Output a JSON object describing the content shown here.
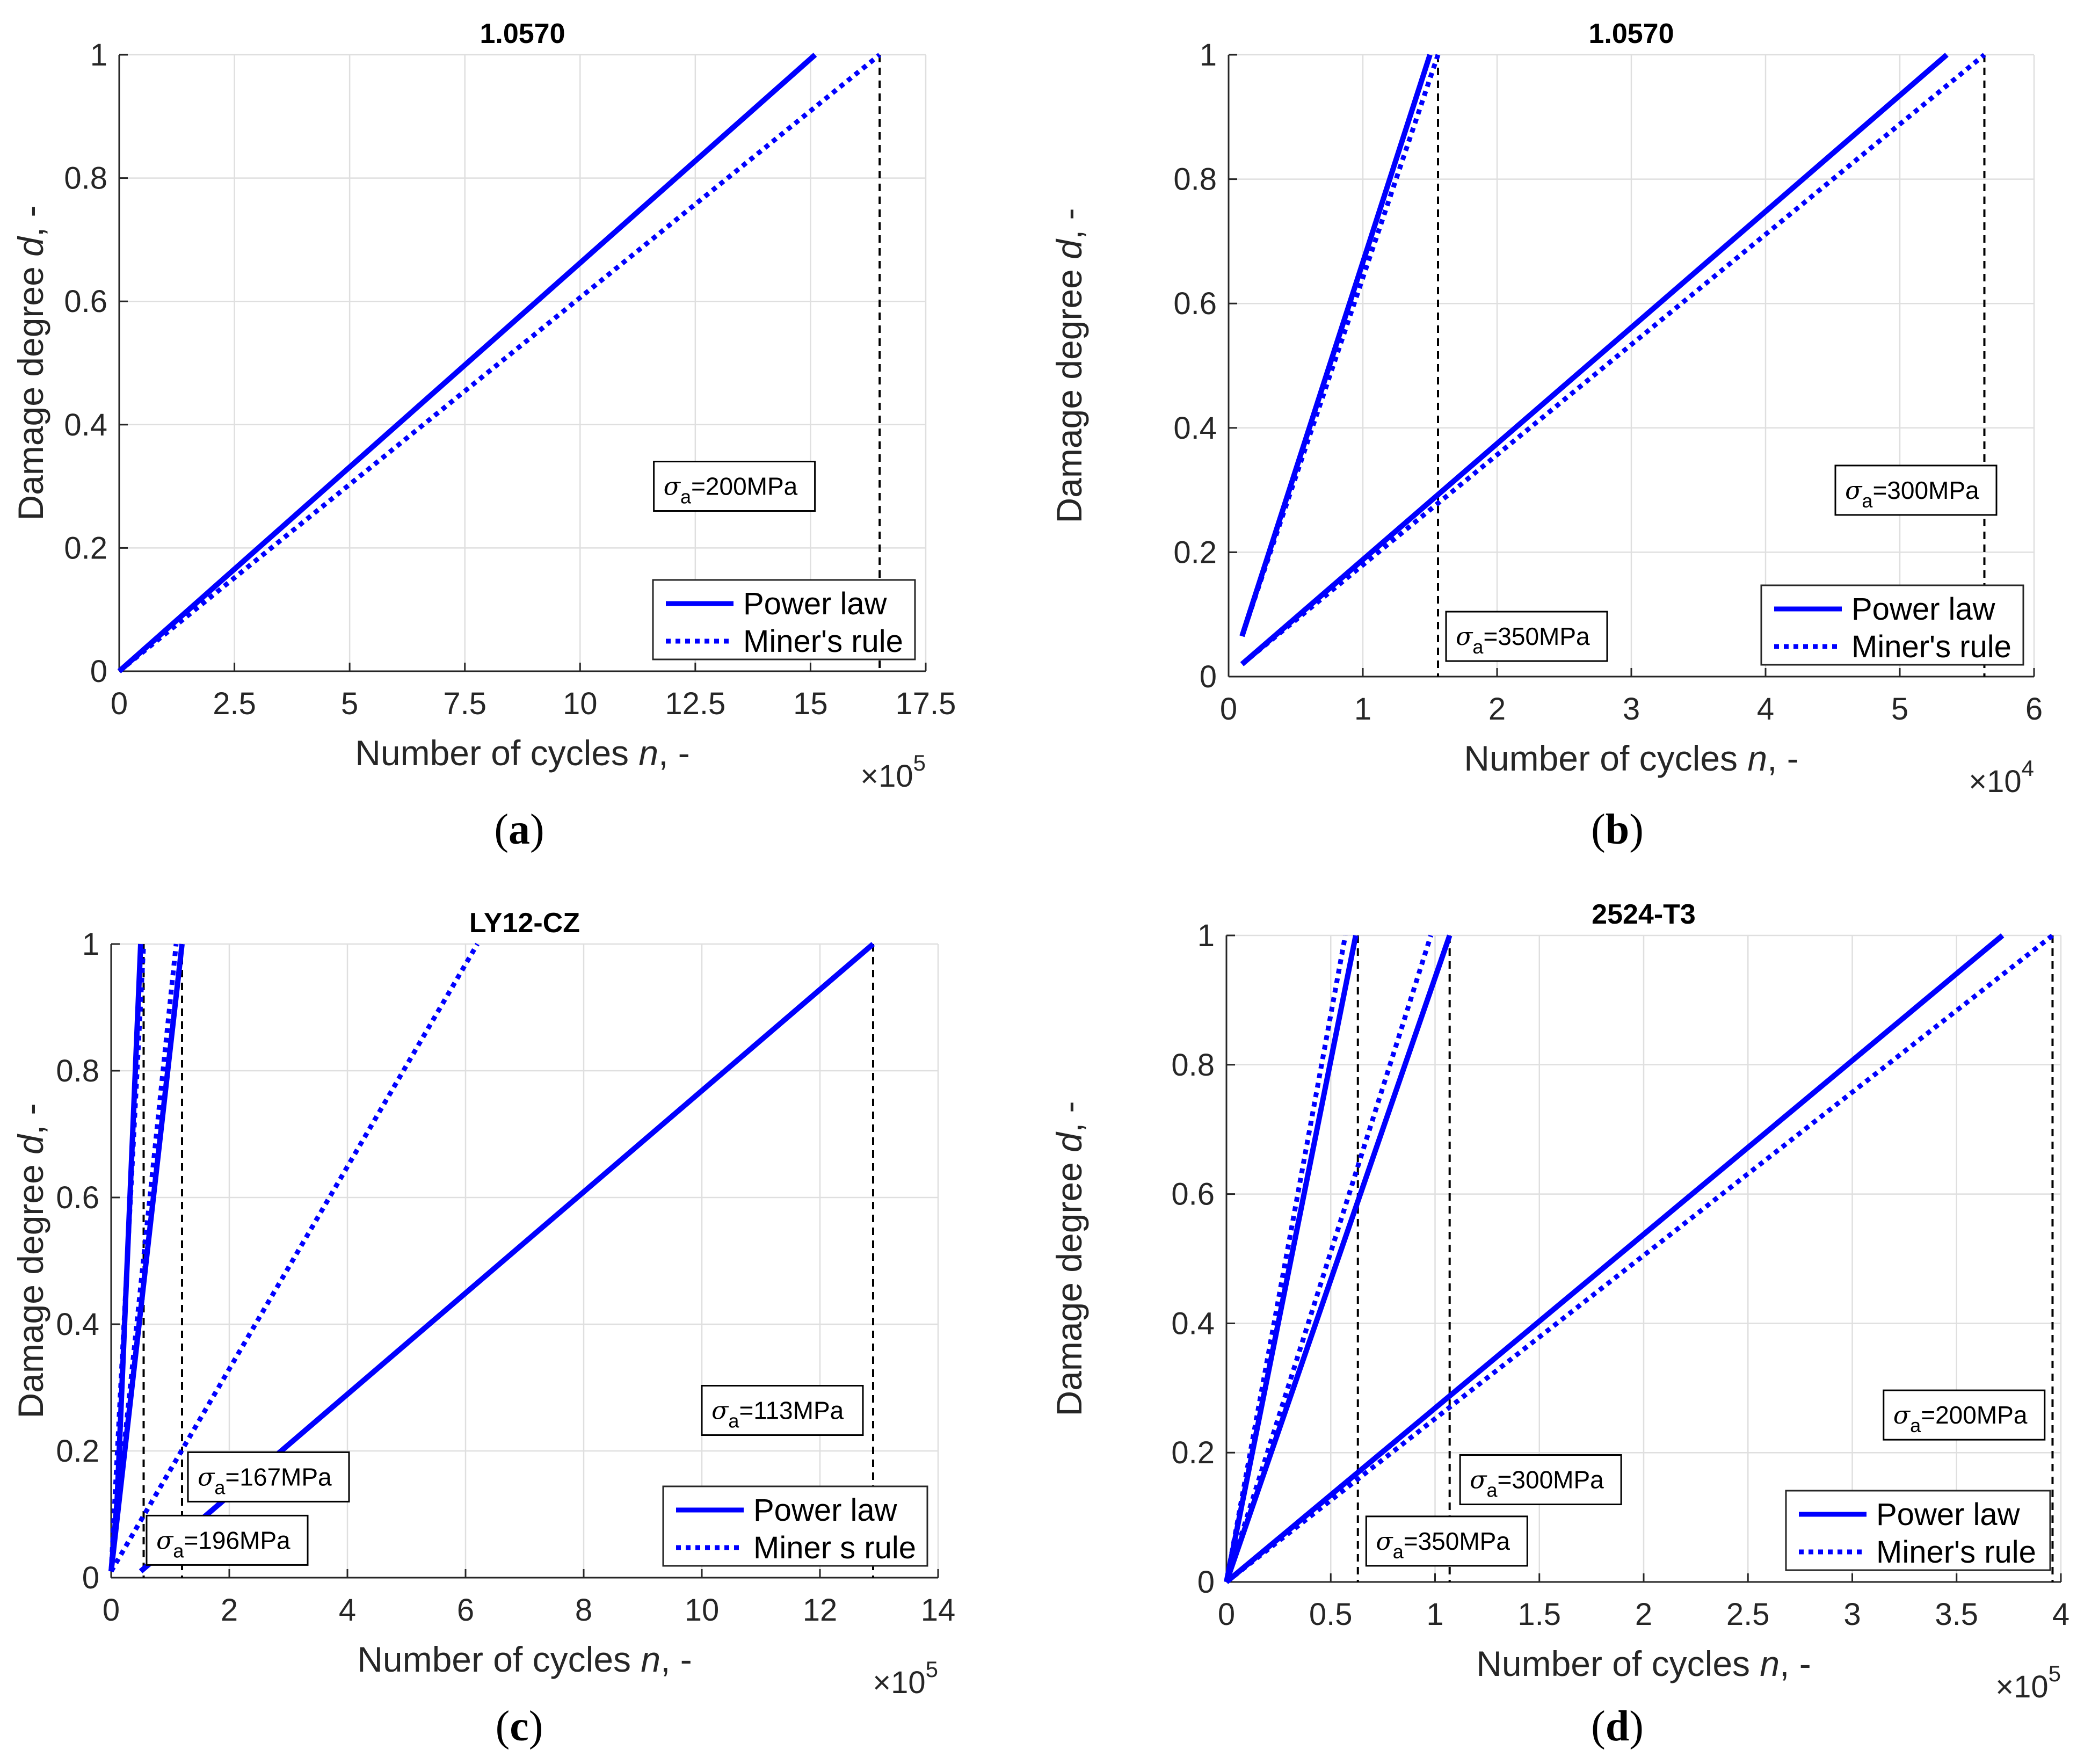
{
  "figure": {
    "axis_label_x_prefix": "Number of cycles ",
    "axis_label_x_var": "n",
    "axis_label_x_suffix": ", -",
    "axis_label_y_prefix": "Damage degree ",
    "axis_label_y_var": "d",
    "axis_label_y_suffix": ", -",
    "colors": {
      "series": "#0000ff",
      "axes": "#262626",
      "grid": "#dfdfdf",
      "vline": "#000000"
    }
  },
  "chart_data": [
    {
      "id": "a",
      "type": "line",
      "caption_letter": "a",
      "title": "1.0570",
      "xlim": [
        0,
        17.5
      ],
      "ylim": [
        0,
        1
      ],
      "xticks": [
        0,
        2.5,
        5,
        7.5,
        10,
        12.5,
        15,
        17.5
      ],
      "xtick_labels": [
        "0",
        "2.5",
        "5",
        "7.5",
        "10",
        "12.5",
        "15",
        "17.5"
      ],
      "yticks": [
        0,
        0.2,
        0.4,
        0.6,
        0.8,
        1
      ],
      "ytick_labels": [
        "0",
        "0.2",
        "0.4",
        "0.6",
        "0.8",
        "1"
      ],
      "x_multiplier": "×10",
      "x_exponent": "5",
      "legend": [
        "Power law",
        "Miner's rule"
      ],
      "legend_position": "bottom-right",
      "series": [
        {
          "name": "Power law",
          "style": "solid",
          "x": [
            0,
            15.1
          ],
          "y": [
            0,
            1
          ]
        },
        {
          "name": "Miner's rule",
          "style": "dotted",
          "x": [
            0,
            16.5
          ],
          "y": [
            0,
            1
          ]
        }
      ],
      "vlines": [
        16.5
      ],
      "annotations": [
        {
          "sigma": "σ",
          "sub": "a",
          "text": "=200MPa",
          "x": 11.6,
          "y": 0.26
        }
      ]
    },
    {
      "id": "b",
      "type": "line",
      "caption_letter": "b",
      "title": "1.0570",
      "xlim": [
        0,
        6
      ],
      "ylim": [
        0,
        1
      ],
      "xticks": [
        0,
        1,
        2,
        3,
        4,
        5,
        6
      ],
      "xtick_labels": [
        "0",
        "1",
        "2",
        "3",
        "4",
        "5",
        "6"
      ],
      "yticks": [
        0,
        0.2,
        0.4,
        0.6,
        0.8,
        1
      ],
      "ytick_labels": [
        "0",
        "0.2",
        "0.4",
        "0.6",
        "0.8",
        "1"
      ],
      "x_multiplier": "×10",
      "x_exponent": "4",
      "legend": [
        "Power law",
        "Miner's rule"
      ],
      "legend_position": "bottom-right",
      "series": [
        {
          "name": "Power law",
          "style": "solid",
          "x": [
            0.1,
            1.5
          ],
          "y": [
            0.065,
            1
          ]
        },
        {
          "name": "Miner's rule",
          "style": "dotted",
          "x": [
            0.1,
            1.56
          ],
          "y": [
            0.065,
            1
          ]
        },
        {
          "name": "Power law",
          "style": "solid",
          "x": [
            0.1,
            5.35
          ],
          "y": [
            0.02,
            1
          ]
        },
        {
          "name": "Miner's rule",
          "style": "dotted",
          "x": [
            0.1,
            5.63
          ],
          "y": [
            0.02,
            1
          ]
        }
      ],
      "vlines": [
        1.56,
        5.63
      ],
      "annotations": [
        {
          "sigma": "σ",
          "sub": "a",
          "text": "=350MPa",
          "x": 1.62,
          "y": 0.025
        },
        {
          "sigma": "σ",
          "sub": "a",
          "text": "=300MPa",
          "x": 4.52,
          "y": 0.26
        }
      ]
    },
    {
      "id": "c",
      "type": "line",
      "caption_letter": "c",
      "title": "LY12-CZ",
      "xlim": [
        0,
        14
      ],
      "ylim": [
        0,
        1
      ],
      "xticks": [
        0,
        2,
        4,
        6,
        8,
        10,
        12,
        14
      ],
      "xtick_labels": [
        "0",
        "2",
        "4",
        "6",
        "8",
        "10",
        "12",
        "14"
      ],
      "yticks": [
        0,
        0.2,
        0.4,
        0.6,
        0.8,
        1
      ],
      "ytick_labels": [
        "0",
        "0.2",
        "0.4",
        "0.6",
        "0.8",
        "1"
      ],
      "x_multiplier": "×10",
      "x_exponent": "5",
      "legend": [
        "Power law",
        "Miner s rule"
      ],
      "legend_position": "bottom-right",
      "series": [
        {
          "name": "Power law",
          "style": "solid",
          "x": [
            0,
            0.1,
            0.5
          ],
          "y": [
            0.01,
            0.12,
            1
          ]
        },
        {
          "name": "Miner's rule",
          "style": "dotted",
          "x": [
            0,
            0.55
          ],
          "y": [
            0.01,
            1
          ]
        },
        {
          "name": "Power law",
          "style": "solid",
          "x": [
            0,
            1.2
          ],
          "y": [
            0.01,
            1
          ]
        },
        {
          "name": "Miner's rule",
          "style": "dotted",
          "x": [
            0,
            1.1
          ],
          "y": [
            0.01,
            1
          ]
        },
        {
          "name": "Power law",
          "style": "solid",
          "x": [
            0.5,
            12.9
          ],
          "y": [
            0.01,
            1
          ]
        },
        {
          "name": "Miner's rule",
          "style": "dotted",
          "x": [
            0,
            6.2
          ],
          "y": [
            0.01,
            1
          ]
        }
      ],
      "vlines": [
        0.55,
        1.2,
        12.9
      ],
      "annotations": [
        {
          "sigma": "σ",
          "sub": "a",
          "text": "=196MPa",
          "x": 0.6,
          "y": 0.02
        },
        {
          "sigma": "σ",
          "sub": "a",
          "text": "=167MPa",
          "x": 1.3,
          "y": 0.12
        },
        {
          "sigma": "σ",
          "sub": "a",
          "text": "=113MPa",
          "x": 10.0,
          "y": 0.225
        }
      ]
    },
    {
      "id": "d",
      "type": "line",
      "caption_letter": "d",
      "title": "2524-T3",
      "xlim": [
        0,
        4
      ],
      "ylim": [
        0,
        1
      ],
      "xticks": [
        0,
        0.5,
        1,
        1.5,
        2,
        2.5,
        3,
        3.5,
        4
      ],
      "xtick_labels": [
        "0",
        "0.5",
        "1",
        "1.5",
        "2",
        "2.5",
        "3",
        "3.5",
        "4"
      ],
      "yticks": [
        0,
        0.2,
        0.4,
        0.6,
        0.8,
        1
      ],
      "ytick_labels": [
        "0",
        "0.2",
        "0.4",
        "0.6",
        "0.8",
        "1"
      ],
      "x_multiplier": "×10",
      "x_exponent": "5",
      "legend": [
        "Power law",
        "Miner's rule"
      ],
      "legend_position": "bottom-right",
      "series": [
        {
          "name": "Power law",
          "style": "solid",
          "x": [
            0,
            0.62
          ],
          "y": [
            0,
            1
          ]
        },
        {
          "name": "Miner's rule",
          "style": "dotted",
          "x": [
            0,
            0.57
          ],
          "y": [
            0,
            1
          ]
        },
        {
          "name": "Power law",
          "style": "solid",
          "x": [
            0,
            1.07
          ],
          "y": [
            0,
            1
          ]
        },
        {
          "name": "Miner's rule",
          "style": "dotted",
          "x": [
            0,
            0.98
          ],
          "y": [
            0,
            1
          ]
        },
        {
          "name": "Power law",
          "style": "solid",
          "x": [
            0,
            3.72
          ],
          "y": [
            0,
            1
          ]
        },
        {
          "name": "Miner's rule",
          "style": "dotted",
          "x": [
            0,
            3.96
          ],
          "y": [
            0,
            1
          ]
        }
      ],
      "vlines": [
        0.63,
        1.07,
        3.96
      ],
      "annotations": [
        {
          "sigma": "σ",
          "sub": "a",
          "text": "=350MPa",
          "x": 0.67,
          "y": 0.025
        },
        {
          "sigma": "σ",
          "sub": "a",
          "text": "=300MPa",
          "x": 1.12,
          "y": 0.12
        },
        {
          "sigma": "σ",
          "sub": "a",
          "text": "=200MPa",
          "x": 3.15,
          "y": 0.22
        }
      ]
    }
  ]
}
